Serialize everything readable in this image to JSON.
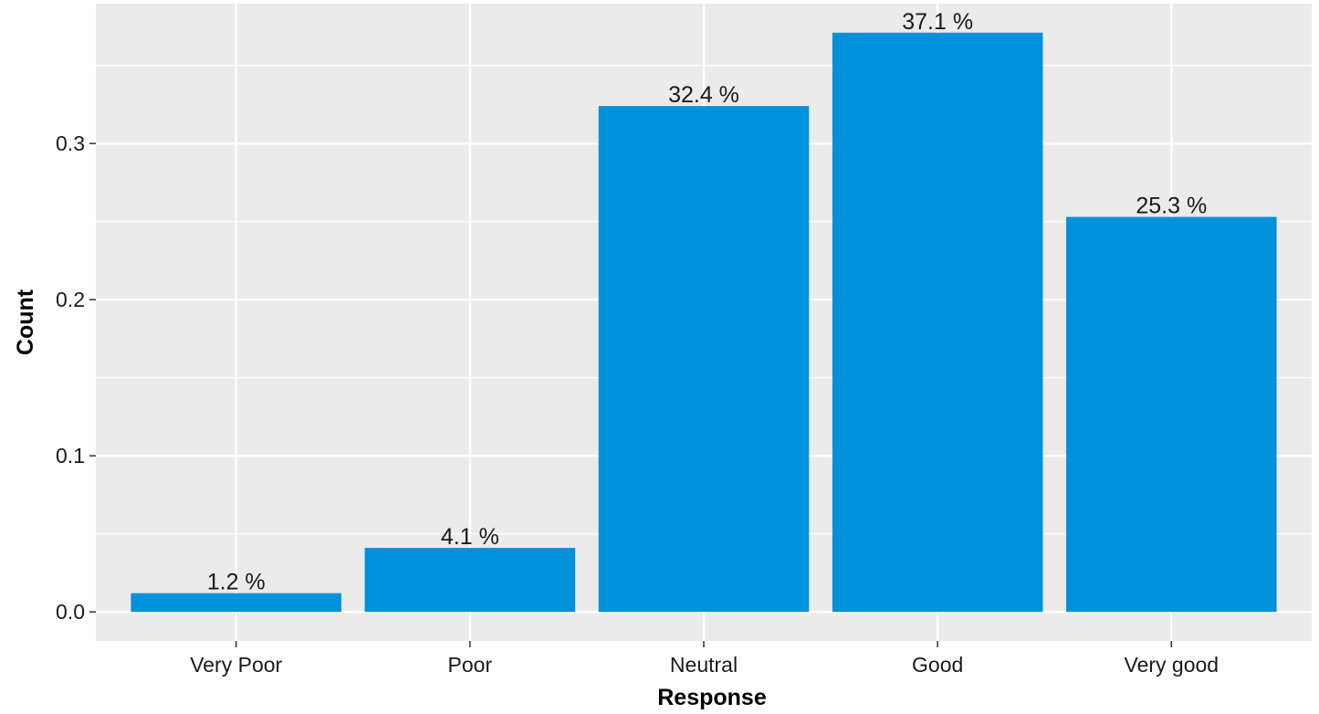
{
  "chart_data": {
    "type": "bar",
    "categories": [
      "Very Poor",
      "Poor",
      "Neutral",
      "Good",
      "Very good"
    ],
    "values": [
      0.012,
      0.041,
      0.324,
      0.371,
      0.253
    ],
    "data_labels": [
      "1.2 %",
      "4.1 %",
      "32.4 %",
      "37.1 %",
      "25.3 %"
    ],
    "title": "",
    "xlabel": "Response",
    "ylabel": "Count",
    "ylim": [
      -0.0186,
      0.3896
    ],
    "yticks": [
      0.0,
      0.1,
      0.2,
      0.3
    ],
    "ytick_labels": [
      "0.0",
      "0.1",
      "0.2",
      "0.3"
    ],
    "grid": true,
    "legend": "none",
    "colors": {
      "bar": "#0091DC",
      "panel_background": "#EBEBEB",
      "grid": "#FFFFFF",
      "text": "#1A1A1A",
      "axis_tick": "#333333"
    }
  }
}
